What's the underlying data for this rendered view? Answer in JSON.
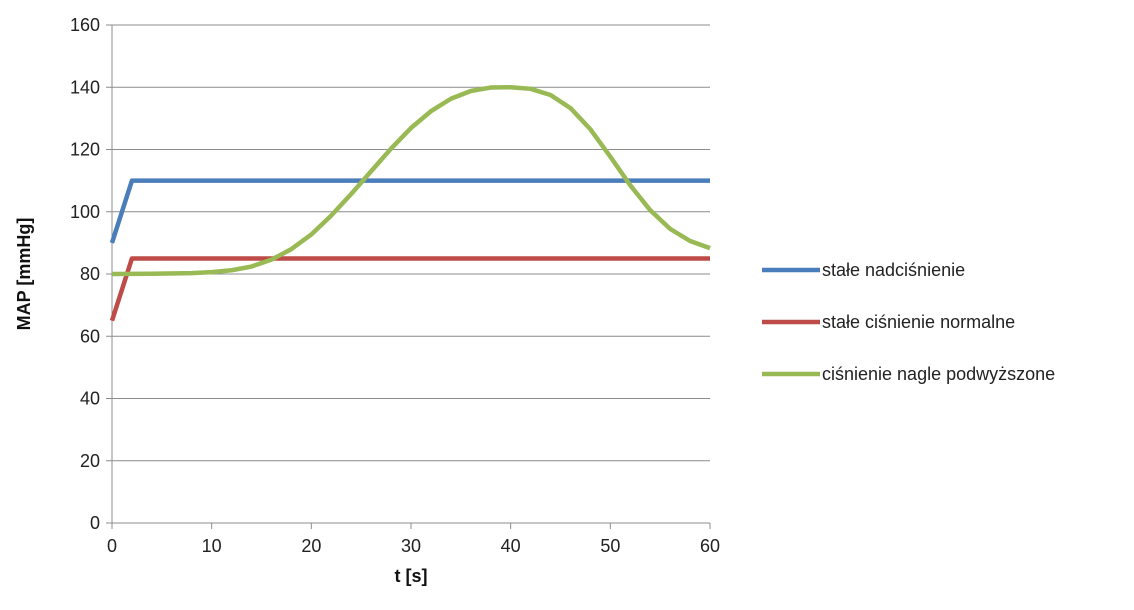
{
  "chart_data": {
    "type": "line",
    "title": "",
    "xlabel": "t [s]",
    "ylabel": "MAP [mmHg]",
    "xlim": [
      0,
      60
    ],
    "ylim": [
      0,
      160
    ],
    "xticks": [
      0,
      10,
      20,
      30,
      40,
      50,
      60
    ],
    "yticks": [
      0,
      20,
      40,
      60,
      80,
      100,
      120,
      140,
      160
    ],
    "grid": "horizontal",
    "legend": "right",
    "series": [
      {
        "name": "stałe nadciśnienie",
        "color": "#4a7ebb",
        "points": [
          [
            0,
            90
          ],
          [
            2,
            110
          ],
          [
            60,
            110
          ]
        ]
      },
      {
        "name": "stałe ciśnienie normalne",
        "color": "#be4b48",
        "points": [
          [
            0,
            65
          ],
          [
            2,
            85
          ],
          [
            60,
            85
          ]
        ]
      },
      {
        "name": "ciśnienie nagle podwyższone",
        "color": "#98b954",
        "points": [
          [
            0,
            80
          ],
          [
            4,
            80.1
          ],
          [
            8,
            80.3
          ],
          [
            10,
            80.6
          ],
          [
            12,
            81.2
          ],
          [
            14,
            82.4
          ],
          [
            16,
            84.6
          ],
          [
            18,
            88
          ],
          [
            20,
            92.7
          ],
          [
            22,
            98.8
          ],
          [
            24,
            105.7
          ],
          [
            26,
            113
          ],
          [
            28,
            120.3
          ],
          [
            30,
            126.9
          ],
          [
            32,
            132.3
          ],
          [
            34,
            136.3
          ],
          [
            36,
            138.8
          ],
          [
            38,
            139.9
          ],
          [
            40,
            140
          ],
          [
            42,
            139.5
          ],
          [
            44,
            137.5
          ],
          [
            46,
            133.3
          ],
          [
            48,
            126.5
          ],
          [
            50,
            117.7
          ],
          [
            52,
            108.5
          ],
          [
            54,
            100.5
          ],
          [
            56,
            94.5
          ],
          [
            58,
            90.6
          ],
          [
            60,
            88.3
          ]
        ]
      }
    ]
  }
}
